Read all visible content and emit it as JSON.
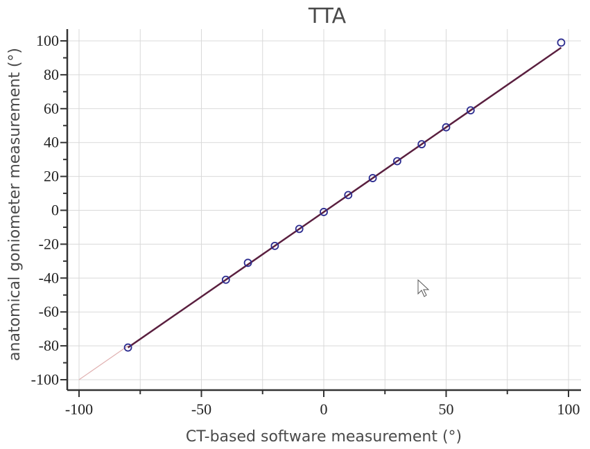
{
  "chart_data": {
    "type": "scatter",
    "title": "TTA",
    "xlabel": "CT-based software measurement (°)",
    "ylabel": "anatomical goniometer measurement (°)",
    "xlim": [
      -100,
      100
    ],
    "ylim": [
      -100,
      100
    ],
    "x_ticks": [
      -100,
      -50,
      0,
      50,
      100
    ],
    "y_ticks": [
      -100,
      -80,
      -60,
      -40,
      -20,
      0,
      20,
      40,
      60,
      80,
      100
    ],
    "x_tick_labels": [
      "-100",
      "-50",
      "0",
      "50",
      "100"
    ],
    "y_tick_labels": [
      "-100",
      "-80",
      "-60",
      "-40",
      "-20",
      "0",
      "20",
      "40",
      "60",
      "80",
      "100"
    ],
    "grid": true,
    "series": [
      {
        "points": [
          {
            "x": -80,
            "y": -81
          },
          {
            "x": -40,
            "y": -41
          },
          {
            "x": -31,
            "y": -31
          },
          {
            "x": -20,
            "y": -21
          },
          {
            "x": -10,
            "y": -11
          },
          {
            "x": 0,
            "y": -1
          },
          {
            "x": 10,
            "y": 9
          },
          {
            "x": 20,
            "y": 19
          },
          {
            "x": 30,
            "y": 29
          },
          {
            "x": 40,
            "y": 39
          },
          {
            "x": 50,
            "y": 49
          },
          {
            "x": 60,
            "y": 59
          },
          {
            "x": 97,
            "y": 99
          }
        ]
      }
    ],
    "fit_line": {
      "x": [
        -80,
        97
      ],
      "y": [
        -81,
        96
      ]
    },
    "identity_line": {
      "x": [
        -100,
        -80
      ],
      "y": [
        -100,
        -80
      ]
    },
    "colors": {
      "points": "#2b2b8f",
      "fit_line": "#5a1f3f",
      "identity_line": "#e0b0b0",
      "grid": "#d9d9d9",
      "axis": "#333333"
    }
  }
}
